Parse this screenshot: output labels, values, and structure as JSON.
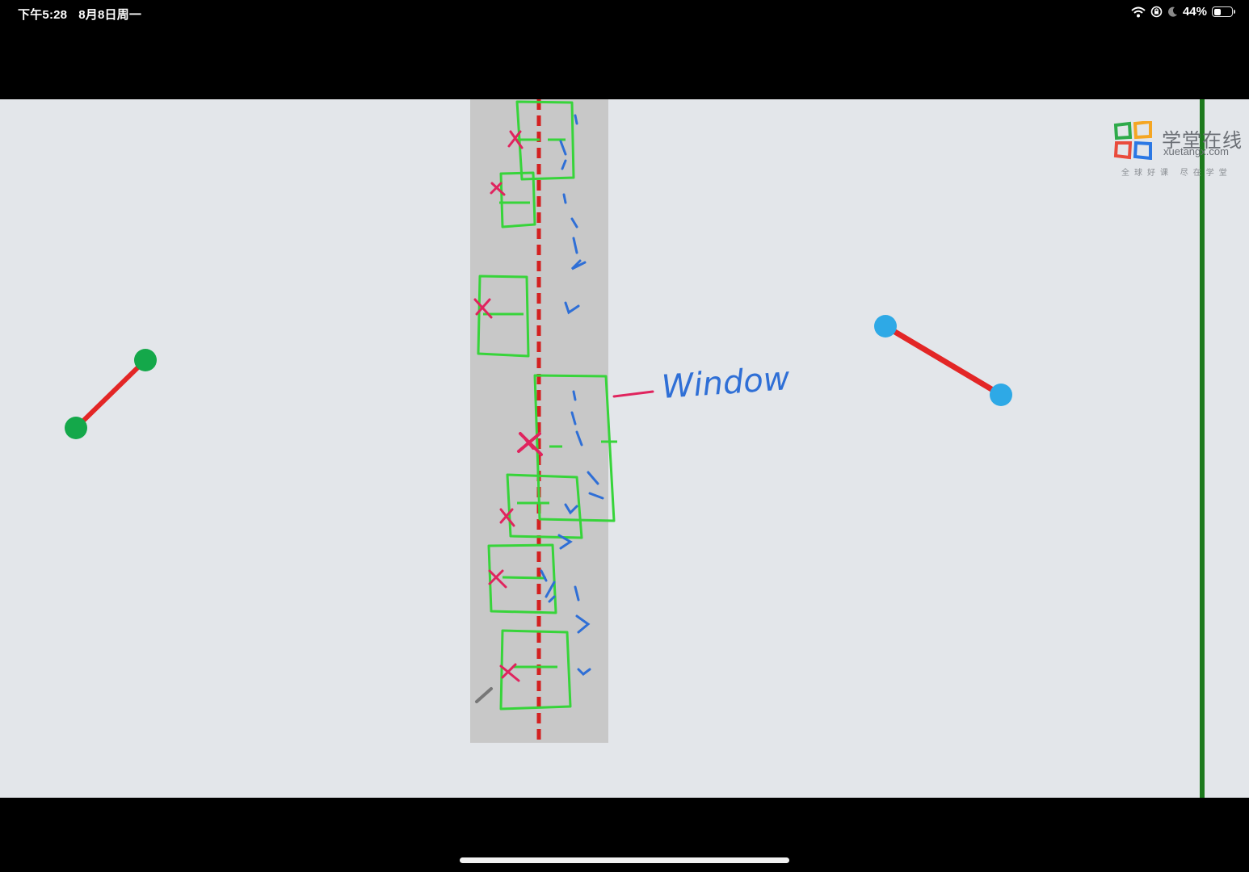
{
  "status_bar": {
    "time": "下午5:28",
    "date": "8月8日周一",
    "battery_percent": "44%",
    "battery_level": 0.44,
    "icons": [
      "wifi-icon",
      "orientation-lock-icon",
      "moon-icon",
      "battery-icon"
    ]
  },
  "logo": {
    "title": "学堂在线",
    "domain": "xuetangx.com",
    "slogan": "全球好课 尽在学堂",
    "colors": [
      "#2eaa4a",
      "#f5a623",
      "#e94b3c",
      "#2b78e4"
    ]
  },
  "annotation": {
    "label": "Window"
  },
  "colors": {
    "backdrop": "#e3e6ea",
    "strip": "#c8c8c8",
    "pen_green": "#37d43a",
    "pen_red": "#e0245e",
    "pen_blue": "#2f6fd6",
    "center_dash": "#d32020",
    "left_segment": "#e32626",
    "left_endpoints": "#14a84a",
    "right_segment": "#e32626",
    "right_endpoints": "#2ea9e6",
    "boundary_line": "#1d7a1d"
  }
}
